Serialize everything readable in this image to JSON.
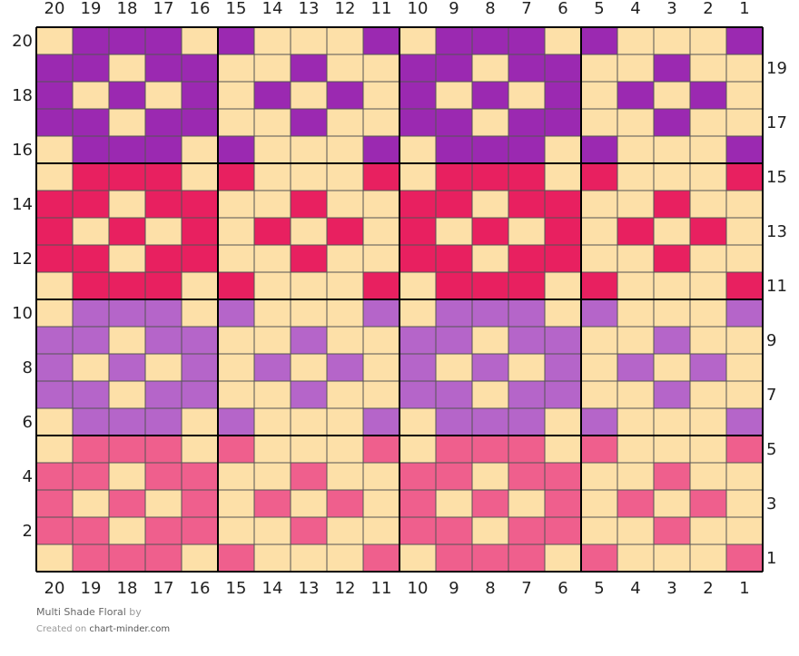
{
  "palette": [
    "#fde0a8",
    "#9b29b1",
    "#e82060",
    "#b565c9",
    "#ef5f8d"
  ],
  "columns": [
    20,
    19,
    18,
    17,
    16,
    15,
    14,
    13,
    12,
    11,
    10,
    9,
    8,
    7,
    6,
    5,
    4,
    3,
    2,
    1
  ],
  "rows": [
    {
      "number": 20,
      "cells": [
        0,
        1,
        1,
        1,
        0,
        1,
        0,
        0,
        0,
        1,
        0,
        1,
        1,
        1,
        0,
        1,
        0,
        0,
        0,
        1
      ]
    },
    {
      "number": 19,
      "cells": [
        1,
        1,
        0,
        1,
        1,
        0,
        0,
        1,
        0,
        0,
        1,
        1,
        0,
        1,
        1,
        0,
        0,
        1,
        0,
        0
      ]
    },
    {
      "number": 18,
      "cells": [
        1,
        0,
        1,
        0,
        1,
        0,
        1,
        0,
        1,
        0,
        1,
        0,
        1,
        0,
        1,
        0,
        1,
        0,
        1,
        0
      ]
    },
    {
      "number": 17,
      "cells": [
        1,
        1,
        0,
        1,
        1,
        0,
        0,
        1,
        0,
        0,
        1,
        1,
        0,
        1,
        1,
        0,
        0,
        1,
        0,
        0
      ]
    },
    {
      "number": 16,
      "cells": [
        0,
        1,
        1,
        1,
        0,
        1,
        0,
        0,
        0,
        1,
        0,
        1,
        1,
        1,
        0,
        1,
        0,
        0,
        0,
        1
      ]
    },
    {
      "number": 15,
      "cells": [
        0,
        2,
        2,
        2,
        0,
        2,
        0,
        0,
        0,
        2,
        0,
        2,
        2,
        2,
        0,
        2,
        0,
        0,
        0,
        2
      ]
    },
    {
      "number": 14,
      "cells": [
        2,
        2,
        0,
        2,
        2,
        0,
        0,
        2,
        0,
        0,
        2,
        2,
        0,
        2,
        2,
        0,
        0,
        2,
        0,
        0
      ]
    },
    {
      "number": 13,
      "cells": [
        2,
        0,
        2,
        0,
        2,
        0,
        2,
        0,
        2,
        0,
        2,
        0,
        2,
        0,
        2,
        0,
        2,
        0,
        2,
        0
      ]
    },
    {
      "number": 12,
      "cells": [
        2,
        2,
        0,
        2,
        2,
        0,
        0,
        2,
        0,
        0,
        2,
        2,
        0,
        2,
        2,
        0,
        0,
        2,
        0,
        0
      ]
    },
    {
      "number": 11,
      "cells": [
        0,
        2,
        2,
        2,
        0,
        2,
        0,
        0,
        0,
        2,
        0,
        2,
        2,
        2,
        0,
        2,
        0,
        0,
        0,
        2
      ]
    },
    {
      "number": 10,
      "cells": [
        0,
        3,
        3,
        3,
        0,
        3,
        0,
        0,
        0,
        3,
        0,
        3,
        3,
        3,
        0,
        3,
        0,
        0,
        0,
        3
      ]
    },
    {
      "number": 9,
      "cells": [
        3,
        3,
        0,
        3,
        3,
        0,
        0,
        3,
        0,
        0,
        3,
        3,
        0,
        3,
        3,
        0,
        0,
        3,
        0,
        0
      ]
    },
    {
      "number": 8,
      "cells": [
        3,
        0,
        3,
        0,
        3,
        0,
        3,
        0,
        3,
        0,
        3,
        0,
        3,
        0,
        3,
        0,
        3,
        0,
        3,
        0
      ]
    },
    {
      "number": 7,
      "cells": [
        3,
        3,
        0,
        3,
        3,
        0,
        0,
        3,
        0,
        0,
        3,
        3,
        0,
        3,
        3,
        0,
        0,
        3,
        0,
        0
      ]
    },
    {
      "number": 6,
      "cells": [
        0,
        3,
        3,
        3,
        0,
        3,
        0,
        0,
        0,
        3,
        0,
        3,
        3,
        3,
        0,
        3,
        0,
        0,
        0,
        3
      ]
    },
    {
      "number": 5,
      "cells": [
        0,
        4,
        4,
        4,
        0,
        4,
        0,
        0,
        0,
        4,
        0,
        4,
        4,
        4,
        0,
        4,
        0,
        0,
        0,
        4
      ]
    },
    {
      "number": 4,
      "cells": [
        4,
        4,
        0,
        4,
        4,
        0,
        0,
        4,
        0,
        0,
        4,
        4,
        0,
        4,
        4,
        0,
        0,
        4,
        0,
        0
      ]
    },
    {
      "number": 3,
      "cells": [
        4,
        0,
        4,
        0,
        4,
        0,
        4,
        0,
        4,
        0,
        4,
        0,
        4,
        0,
        4,
        0,
        4,
        0,
        4,
        0
      ]
    },
    {
      "number": 2,
      "cells": [
        4,
        4,
        0,
        4,
        4,
        0,
        0,
        4,
        0,
        0,
        4,
        4,
        0,
        4,
        4,
        0,
        0,
        4,
        0,
        0
      ]
    },
    {
      "number": 1,
      "cells": [
        0,
        4,
        4,
        4,
        0,
        4,
        0,
        0,
        0,
        4,
        0,
        4,
        4,
        4,
        0,
        4,
        0,
        0,
        0,
        4
      ]
    }
  ],
  "footer": {
    "title": "Multi Shade Floral",
    "by": "by",
    "created": "Created on",
    "site": "chart-minder.com"
  }
}
